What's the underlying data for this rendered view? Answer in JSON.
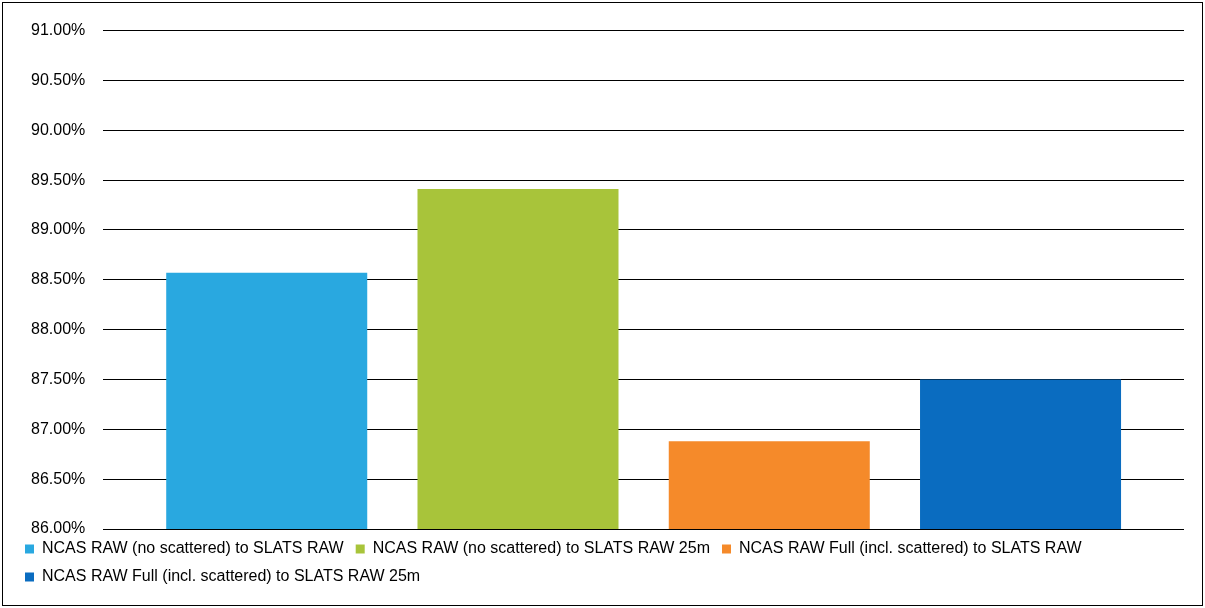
{
  "chart_data": {
    "type": "bar",
    "categories": [
      null
    ],
    "series": [
      {
        "name": "NCAS RAW (no scattered) to SLATS RAW",
        "color": "#29a8e0",
        "values": [
          88.57
        ]
      },
      {
        "name": "NCAS RAW (no scattered) to SLATS RAW 25m",
        "color": "#a8c43a",
        "values": [
          89.41
        ]
      },
      {
        "name": "NCAS RAW Full (incl. scattered) to SLATS RAW",
        "color": "#f58a2a",
        "values": [
          86.88
        ]
      },
      {
        "name": "NCAS RAW Full (incl. scattered) to SLATS RAW 25m",
        "color": "#0a6cc0",
        "values": [
          87.5
        ]
      }
    ],
    "ylim": [
      86,
      91
    ],
    "yticks": [
      {
        "value": 86,
        "label": "86.00%"
      },
      {
        "value": 86.5,
        "label": "86.50%"
      },
      {
        "value": 87,
        "label": "87.00%"
      },
      {
        "value": 87.5,
        "label": "87.50%"
      },
      {
        "value": 88,
        "label": "88.00%"
      },
      {
        "value": 88.5,
        "label": "88.50%"
      },
      {
        "value": 89,
        "label": "89.00%"
      },
      {
        "value": 89.5,
        "label": "89.50%"
      },
      {
        "value": 90,
        "label": "90.00%"
      },
      {
        "value": 90.5,
        "label": "90.50%"
      },
      {
        "value": 91,
        "label": "91.00%"
      }
    ],
    "grid": "y",
    "legend": "bottom"
  }
}
